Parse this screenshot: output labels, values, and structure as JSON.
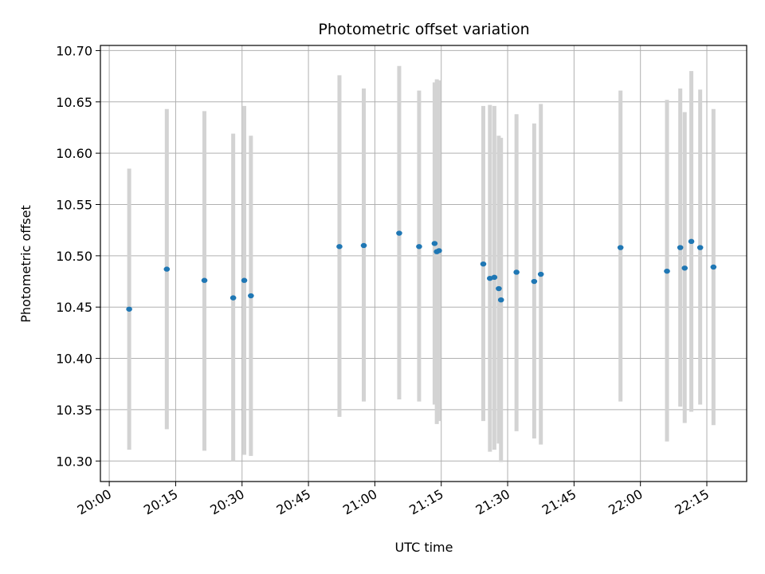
{
  "chart_data": {
    "type": "scatter",
    "title": "Photometric offset variation",
    "xlabel": "UTC time",
    "ylabel": "Photometric offset",
    "x_ticks": [
      "20:00",
      "20:15",
      "20:30",
      "20:45",
      "21:00",
      "21:15",
      "21:30",
      "21:45",
      "22:00",
      "22:15"
    ],
    "y_ticks": [
      "10.30",
      "10.35",
      "10.40",
      "10.45",
      "10.50",
      "10.55",
      "10.60",
      "10.65",
      "10.70"
    ],
    "xlim": [
      "19:58",
      "22:24"
    ],
    "ylim": [
      10.28,
      10.705
    ],
    "grid": true,
    "colors": {
      "point": "#1f77b4",
      "errorbar": "#d3d3d3",
      "grid": "#b0b0b0"
    },
    "points": [
      {
        "x": "20:04:30",
        "y": 10.448,
        "yerr_low": 10.311,
        "yerr_high": 10.585
      },
      {
        "x": "20:13:00",
        "y": 10.487,
        "yerr_low": 10.331,
        "yerr_high": 10.643
      },
      {
        "x": "20:21:30",
        "y": 10.476,
        "yerr_low": 10.31,
        "yerr_high": 10.641
      },
      {
        "x": "20:28:00",
        "y": 10.459,
        "yerr_low": 10.3,
        "yerr_high": 10.619
      },
      {
        "x": "20:30:30",
        "y": 10.476,
        "yerr_low": 10.306,
        "yerr_high": 10.646
      },
      {
        "x": "20:32:00",
        "y": 10.461,
        "yerr_low": 10.305,
        "yerr_high": 10.617
      },
      {
        "x": "20:52:00",
        "y": 10.509,
        "yerr_low": 10.343,
        "yerr_high": 10.676
      },
      {
        "x": "20:57:30",
        "y": 10.51,
        "yerr_low": 10.358,
        "yerr_high": 10.663
      },
      {
        "x": "21:05:30",
        "y": 10.522,
        "yerr_low": 10.36,
        "yerr_high": 10.685
      },
      {
        "x": "21:10:00",
        "y": 10.509,
        "yerr_low": 10.358,
        "yerr_high": 10.661
      },
      {
        "x": "21:13:30",
        "y": 10.512,
        "yerr_low": 10.355,
        "yerr_high": 10.669
      },
      {
        "x": "21:14:00",
        "y": 10.504,
        "yerr_low": 10.336,
        "yerr_high": 10.672
      },
      {
        "x": "21:14:30",
        "y": 10.505,
        "yerr_low": 10.339,
        "yerr_high": 10.671
      },
      {
        "x": "21:24:30",
        "y": 10.492,
        "yerr_low": 10.339,
        "yerr_high": 10.646
      },
      {
        "x": "21:26:00",
        "y": 10.478,
        "yerr_low": 10.309,
        "yerr_high": 10.647
      },
      {
        "x": "21:27:00",
        "y": 10.479,
        "yerr_low": 10.311,
        "yerr_high": 10.646
      },
      {
        "x": "21:28:00",
        "y": 10.468,
        "yerr_low": 10.317,
        "yerr_high": 10.617
      },
      {
        "x": "21:28:30",
        "y": 10.457,
        "yerr_low": 10.299,
        "yerr_high": 10.615
      },
      {
        "x": "21:32:00",
        "y": 10.484,
        "yerr_low": 10.329,
        "yerr_high": 10.638
      },
      {
        "x": "21:36:00",
        "y": 10.475,
        "yerr_low": 10.322,
        "yerr_high": 10.629
      },
      {
        "x": "21:37:30",
        "y": 10.482,
        "yerr_low": 10.316,
        "yerr_high": 10.648
      },
      {
        "x": "21:55:30",
        "y": 10.508,
        "yerr_low": 10.358,
        "yerr_high": 10.661
      },
      {
        "x": "22:06:00",
        "y": 10.485,
        "yerr_low": 10.319,
        "yerr_high": 10.652
      },
      {
        "x": "22:09:00",
        "y": 10.508,
        "yerr_low": 10.353,
        "yerr_high": 10.663
      },
      {
        "x": "22:10:00",
        "y": 10.488,
        "yerr_low": 10.337,
        "yerr_high": 10.64
      },
      {
        "x": "22:11:30",
        "y": 10.514,
        "yerr_low": 10.348,
        "yerr_high": 10.68
      },
      {
        "x": "22:13:30",
        "y": 10.508,
        "yerr_low": 10.355,
        "yerr_high": 10.662
      },
      {
        "x": "22:16:30",
        "y": 10.489,
        "yerr_low": 10.335,
        "yerr_high": 10.643
      }
    ]
  }
}
